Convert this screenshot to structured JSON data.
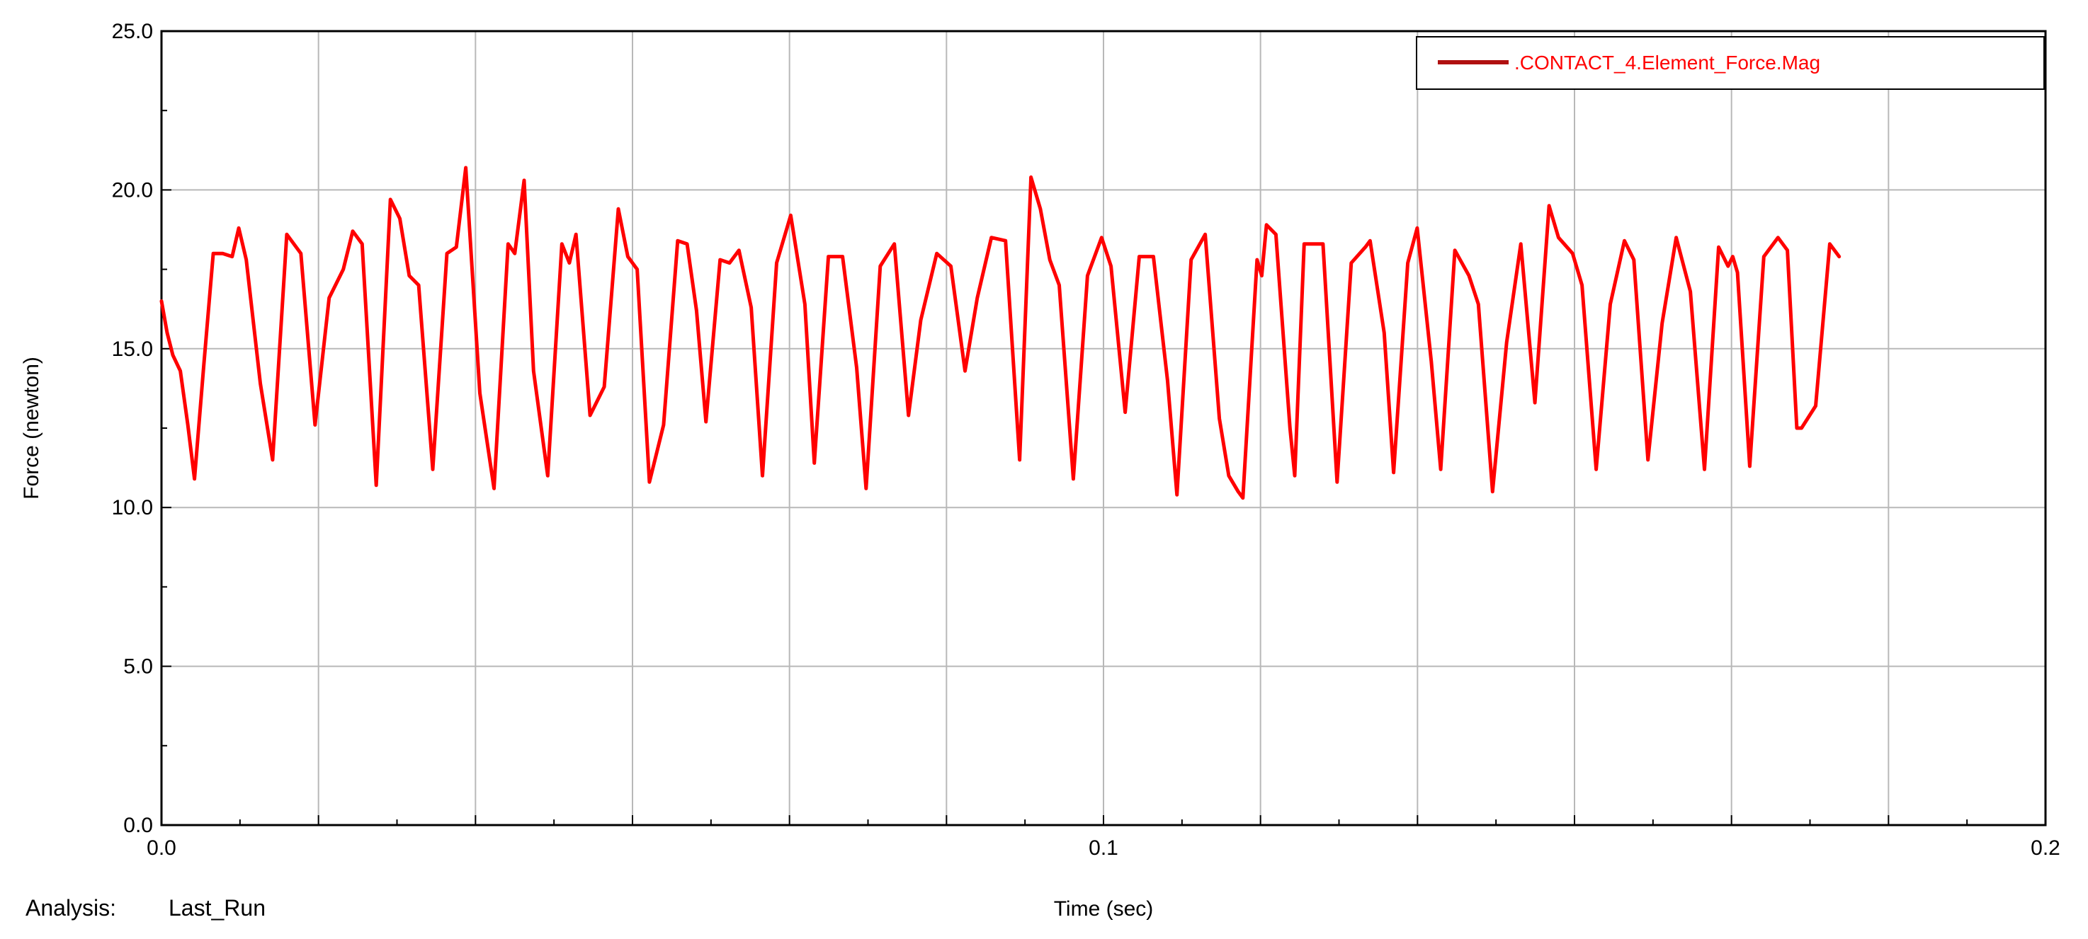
{
  "chart_data": {
    "type": "line",
    "xlabel": "Time (sec)",
    "ylabel": "Force (newton)",
    "xlim": [
      0.0,
      0.2
    ],
    "ylim": [
      0.0,
      25.0
    ],
    "x_ticks": [
      "0.0",
      "0.1",
      "0.2"
    ],
    "y_ticks": [
      "0.0",
      "5.0",
      "10.0",
      "15.0",
      "20.0",
      "25.0"
    ],
    "grid": true,
    "legend_position": "top-right",
    "analysis_label": "Analysis:",
    "analysis_value": "Last_Run",
    "line_color": "#ff0000",
    "legend_line_color": "#b01010",
    "series": [
      {
        "name": ".CONTACT_4.Element_Force.Mag",
        "points": [
          [
            0.0,
            16.5
          ],
          [
            0.0006,
            15.5
          ],
          [
            0.0012,
            14.8
          ],
          [
            0.002,
            14.3
          ],
          [
            0.0028,
            12.6
          ],
          [
            0.0035,
            10.9
          ],
          [
            0.0045,
            14.5
          ],
          [
            0.0055,
            18.0
          ],
          [
            0.0065,
            18.0
          ],
          [
            0.0075,
            17.9
          ],
          [
            0.0082,
            18.8
          ],
          [
            0.009,
            17.8
          ],
          [
            0.0105,
            13.9
          ],
          [
            0.0118,
            11.5
          ],
          [
            0.0133,
            18.6
          ],
          [
            0.0148,
            18.0
          ],
          [
            0.0163,
            12.6
          ],
          [
            0.0178,
            16.6
          ],
          [
            0.0193,
            17.5
          ],
          [
            0.0203,
            18.7
          ],
          [
            0.0213,
            18.3
          ],
          [
            0.0228,
            10.7
          ],
          [
            0.0243,
            19.7
          ],
          [
            0.0253,
            19.1
          ],
          [
            0.0263,
            17.3
          ],
          [
            0.0273,
            17.0
          ],
          [
            0.0288,
            11.2
          ],
          [
            0.0303,
            18.0
          ],
          [
            0.0313,
            18.2
          ],
          [
            0.0323,
            20.7
          ],
          [
            0.0338,
            13.6
          ],
          [
            0.0353,
            10.6
          ],
          [
            0.0368,
            18.3
          ],
          [
            0.0375,
            18.0
          ],
          [
            0.0385,
            20.3
          ],
          [
            0.0395,
            14.3
          ],
          [
            0.041,
            11.0
          ],
          [
            0.0425,
            18.3
          ],
          [
            0.0433,
            17.7
          ],
          [
            0.044,
            18.6
          ],
          [
            0.0455,
            12.9
          ],
          [
            0.047,
            13.8
          ],
          [
            0.0485,
            19.4
          ],
          [
            0.0495,
            17.9
          ],
          [
            0.0505,
            17.5
          ],
          [
            0.0518,
            10.8
          ],
          [
            0.0533,
            12.6
          ],
          [
            0.0548,
            18.4
          ],
          [
            0.0558,
            18.3
          ],
          [
            0.0568,
            16.2
          ],
          [
            0.0578,
            12.7
          ],
          [
            0.0593,
            17.8
          ],
          [
            0.0603,
            17.7
          ],
          [
            0.0613,
            18.1
          ],
          [
            0.0626,
            16.3
          ],
          [
            0.0638,
            11.0
          ],
          [
            0.0653,
            17.7
          ],
          [
            0.0668,
            19.2
          ],
          [
            0.0683,
            16.4
          ],
          [
            0.0693,
            11.4
          ],
          [
            0.0708,
            17.9
          ],
          [
            0.0723,
            17.9
          ],
          [
            0.0738,
            14.4
          ],
          [
            0.0748,
            10.6
          ],
          [
            0.0763,
            17.6
          ],
          [
            0.0778,
            18.3
          ],
          [
            0.0793,
            12.9
          ],
          [
            0.0806,
            15.9
          ],
          [
            0.0823,
            18.0
          ],
          [
            0.0838,
            17.6
          ],
          [
            0.0853,
            14.3
          ],
          [
            0.0866,
            16.6
          ],
          [
            0.0881,
            18.5
          ],
          [
            0.0896,
            18.4
          ],
          [
            0.0911,
            11.5
          ],
          [
            0.0923,
            20.4
          ],
          [
            0.0933,
            19.4
          ],
          [
            0.0943,
            17.8
          ],
          [
            0.0953,
            17.0
          ],
          [
            0.0968,
            10.9
          ],
          [
            0.0983,
            17.3
          ],
          [
            0.0998,
            18.5
          ],
          [
            0.1008,
            17.6
          ],
          [
            0.1023,
            13.0
          ],
          [
            0.1038,
            17.9
          ],
          [
            0.1053,
            17.9
          ],
          [
            0.1068,
            14.0
          ],
          [
            0.1078,
            10.4
          ],
          [
            0.1093,
            17.8
          ],
          [
            0.1108,
            18.6
          ],
          [
            0.1123,
            12.8
          ],
          [
            0.1133,
            11.0
          ],
          [
            0.1143,
            10.5
          ],
          [
            0.1148,
            10.3
          ],
          [
            0.1163,
            17.8
          ],
          [
            0.1168,
            17.3
          ],
          [
            0.1173,
            18.9
          ],
          [
            0.1183,
            18.6
          ],
          [
            0.1198,
            12.5
          ],
          [
            0.1203,
            11.0
          ],
          [
            0.1213,
            18.3
          ],
          [
            0.1233,
            18.3
          ],
          [
            0.1248,
            10.8
          ],
          [
            0.1263,
            17.7
          ],
          [
            0.1278,
            18.2
          ],
          [
            0.1283,
            18.4
          ],
          [
            0.1298,
            15.5
          ],
          [
            0.1308,
            11.1
          ],
          [
            0.1323,
            17.7
          ],
          [
            0.1333,
            18.8
          ],
          [
            0.1348,
            14.6
          ],
          [
            0.1358,
            11.2
          ],
          [
            0.1373,
            18.1
          ],
          [
            0.1388,
            17.3
          ],
          [
            0.1398,
            16.4
          ],
          [
            0.1413,
            10.5
          ],
          [
            0.1428,
            15.2
          ],
          [
            0.1443,
            18.3
          ],
          [
            0.1458,
            13.3
          ],
          [
            0.1473,
            19.5
          ],
          [
            0.1483,
            18.5
          ],
          [
            0.1498,
            18.0
          ],
          [
            0.1508,
            17.0
          ],
          [
            0.1523,
            11.2
          ],
          [
            0.1538,
            16.4
          ],
          [
            0.1553,
            18.4
          ],
          [
            0.1563,
            17.8
          ],
          [
            0.1578,
            11.5
          ],
          [
            0.1593,
            15.8
          ],
          [
            0.1608,
            18.5
          ],
          [
            0.1623,
            16.8
          ],
          [
            0.1638,
            11.2
          ],
          [
            0.1653,
            18.2
          ],
          [
            0.1663,
            17.6
          ],
          [
            0.1668,
            17.9
          ],
          [
            0.1673,
            17.4
          ],
          [
            0.1686,
            11.3
          ],
          [
            0.1701,
            17.9
          ],
          [
            0.1716,
            18.5
          ],
          [
            0.1726,
            18.1
          ],
          [
            0.1736,
            12.5
          ],
          [
            0.1741,
            12.5
          ],
          [
            0.1756,
            13.2
          ],
          [
            0.1771,
            18.3
          ],
          [
            0.1781,
            17.9
          ]
        ]
      }
    ]
  }
}
